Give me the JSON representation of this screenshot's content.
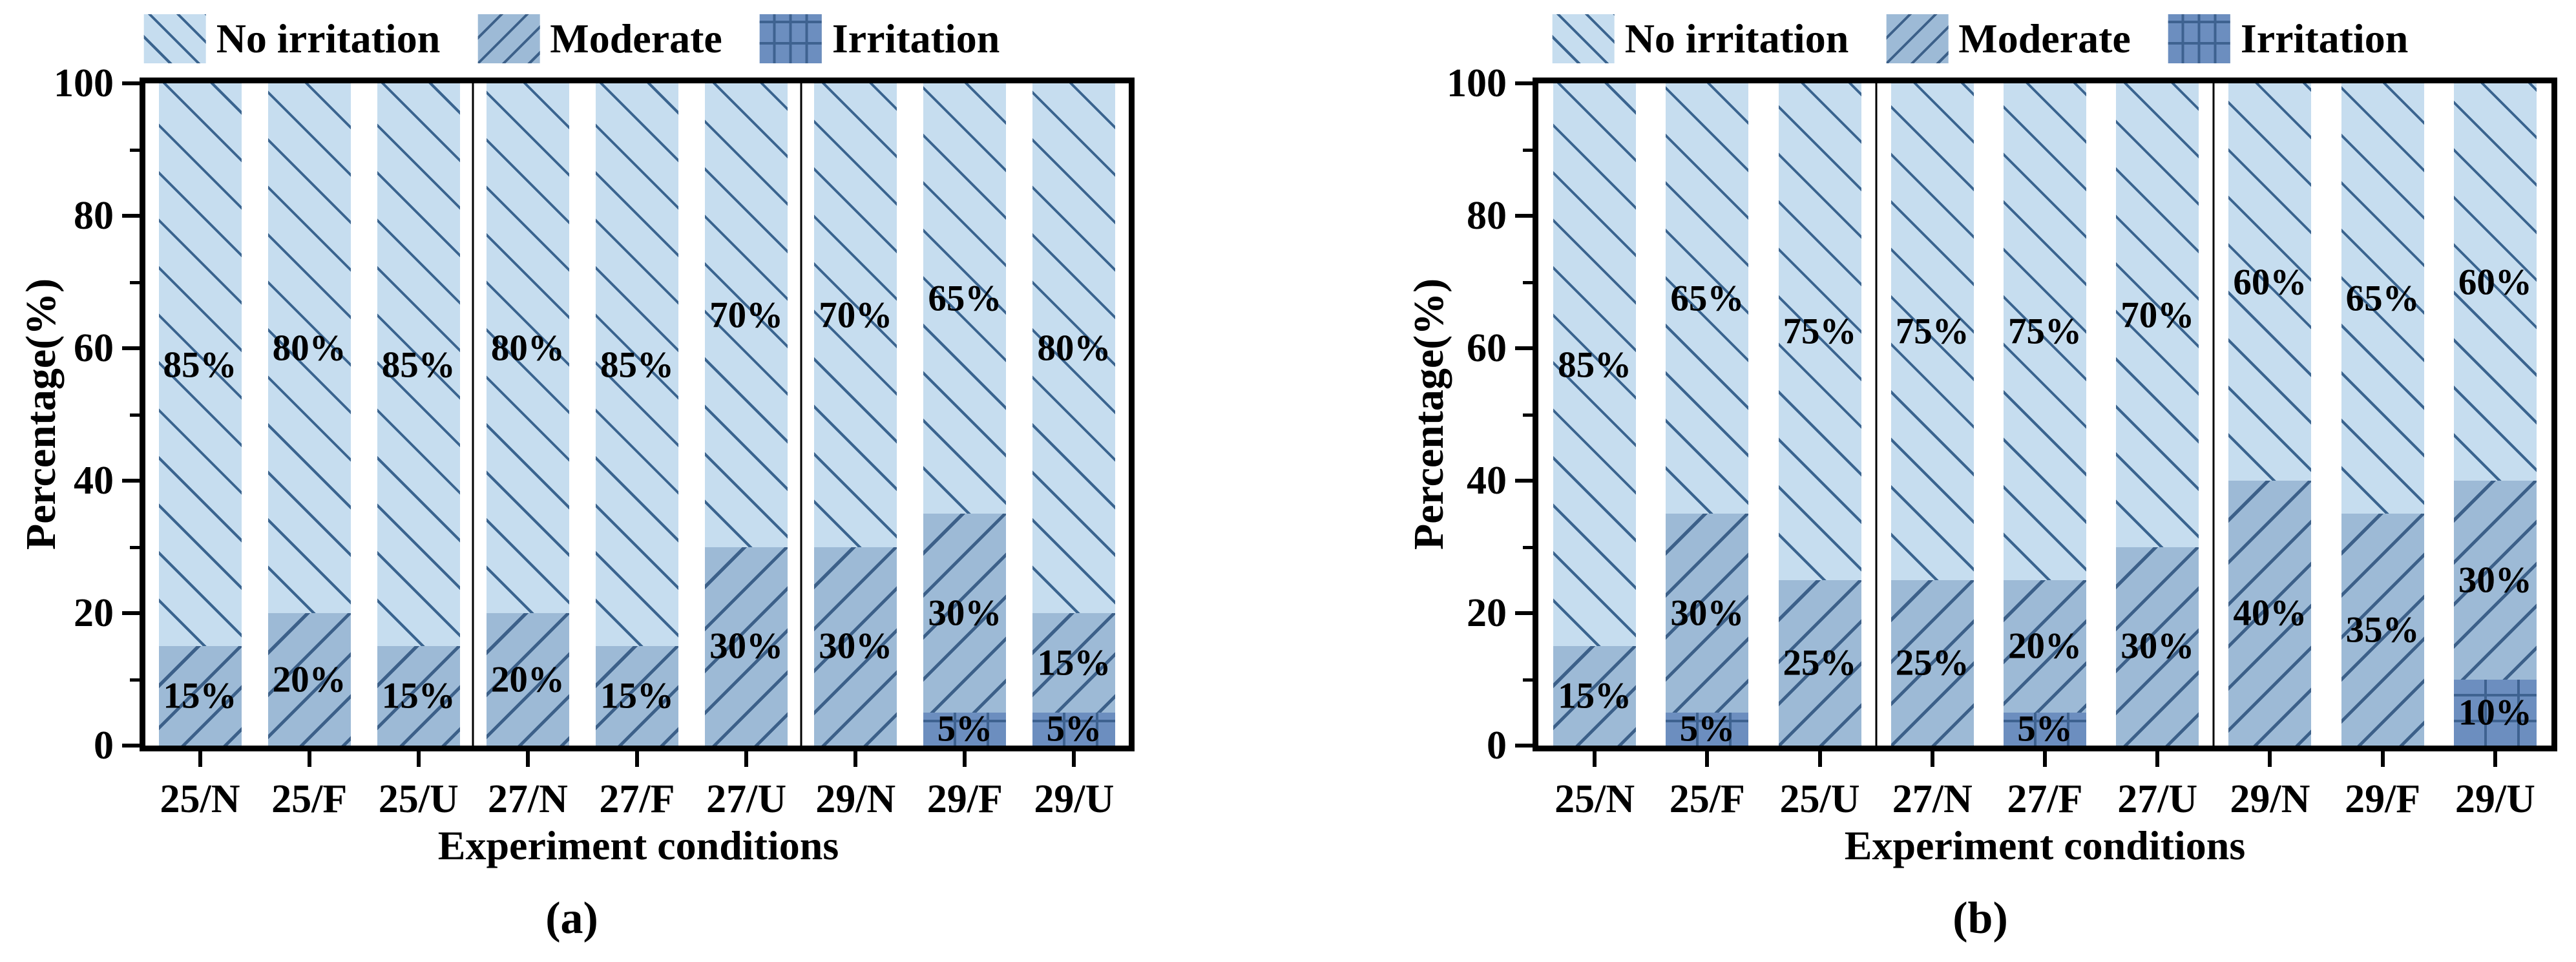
{
  "figure": {
    "y_axis_title": "Percentage(%)",
    "x_axis_title": "Experiment conditions",
    "legend": [
      "No irritation",
      "Moderate",
      "Irritation"
    ],
    "y_major_ticks": [
      0,
      20,
      40,
      60,
      80,
      100
    ],
    "y_minor_ticks": [
      10,
      30,
      50,
      70,
      90
    ],
    "colors": {
      "no_irritation_fill": "#c6ddef",
      "no_irritation_hatch": "#3a648f",
      "moderate_fill": "#9dbad6",
      "moderate_hatch": "#3c6089",
      "irritation_fill": "#6c8ebf",
      "irritation_hatch": "#3e6290",
      "axis": "#000000"
    }
  },
  "chart_data": [
    {
      "type": "bar",
      "stacked": true,
      "panel_label": "(a)",
      "xlabel": "Experiment conditions",
      "ylabel": "Percentage(%)",
      "ylim": [
        0,
        100
      ],
      "grid": false,
      "legend_position": "top",
      "categories": [
        "25/N",
        "25/F",
        "25/U",
        "27/N",
        "27/F",
        "27/U",
        "29/N",
        "29/F",
        "29/U"
      ],
      "groups": [
        [
          "25/N",
          "25/F",
          "25/U"
        ],
        [
          "27/N",
          "27/F",
          "27/U"
        ],
        [
          "29/N",
          "29/F",
          "29/U"
        ]
      ],
      "series": [
        {
          "name": "Irritation",
          "values": [
            0,
            0,
            0,
            0,
            0,
            0,
            0,
            5,
            5
          ]
        },
        {
          "name": "Moderate",
          "values": [
            15,
            20,
            15,
            20,
            15,
            30,
            30,
            30,
            15
          ]
        },
        {
          "name": "No irritation",
          "values": [
            85,
            80,
            85,
            80,
            85,
            70,
            70,
            65,
            80
          ]
        }
      ]
    },
    {
      "type": "bar",
      "stacked": true,
      "panel_label": "(b)",
      "xlabel": "Experiment conditions",
      "ylabel": "Percentage(%)",
      "ylim": [
        0,
        100
      ],
      "grid": false,
      "legend_position": "top",
      "categories": [
        "25/N",
        "25/F",
        "25/U",
        "27/N",
        "27/F",
        "27/U",
        "29/N",
        "29/F",
        "29/U"
      ],
      "groups": [
        [
          "25/N",
          "25/F",
          "25/U"
        ],
        [
          "27/N",
          "27/F",
          "27/U"
        ],
        [
          "29/N",
          "29/F",
          "29/U"
        ]
      ],
      "series": [
        {
          "name": "Irritation",
          "values": [
            0,
            5,
            0,
            0,
            5,
            0,
            0,
            0,
            10
          ]
        },
        {
          "name": "Moderate",
          "values": [
            15,
            30,
            25,
            25,
            20,
            30,
            40,
            35,
            30
          ]
        },
        {
          "name": "No irritation",
          "values": [
            85,
            65,
            75,
            75,
            75,
            70,
            60,
            65,
            60
          ]
        }
      ]
    }
  ]
}
